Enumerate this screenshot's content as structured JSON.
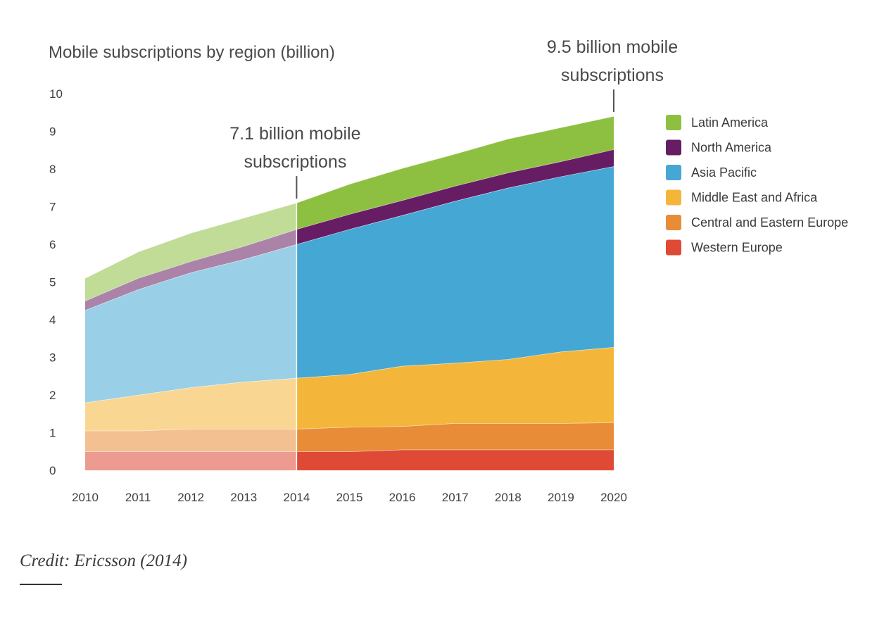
{
  "chart_data": {
    "type": "area",
    "stacked": true,
    "title": "Mobile subscriptions by region (billion)",
    "xlabel": "",
    "ylabel": "",
    "x": [
      2010,
      2011,
      2012,
      2013,
      2014,
      2015,
      2016,
      2017,
      2018,
      2019,
      2020
    ],
    "ylim": [
      0,
      10
    ],
    "yticks": [
      0,
      1,
      2,
      3,
      4,
      5,
      6,
      7,
      8,
      9,
      10
    ],
    "grid": false,
    "legend": "right",
    "highlight_from_x": 2014,
    "series": [
      {
        "name": "Western Europe",
        "color": "#de4a35",
        "values": [
          0.5,
          0.5,
          0.5,
          0.5,
          0.5,
          0.5,
          0.55,
          0.55,
          0.55,
          0.55,
          0.55
        ]
      },
      {
        "name": "Central and Eastern Europe",
        "color": "#e98c37",
        "values": [
          0.55,
          0.55,
          0.6,
          0.6,
          0.6,
          0.65,
          0.62,
          0.7,
          0.7,
          0.7,
          0.72
        ]
      },
      {
        "name": "Middle East and Africa",
        "color": "#f4b63a",
        "values": [
          0.75,
          0.95,
          1.1,
          1.25,
          1.35,
          1.4,
          1.6,
          1.6,
          1.7,
          1.9,
          2.0
        ]
      },
      {
        "name": "Asia Pacific",
        "color": "#45a7d4",
        "values": [
          2.45,
          2.8,
          3.05,
          3.25,
          3.55,
          3.85,
          4.0,
          4.3,
          4.55,
          4.65,
          4.8
        ]
      },
      {
        "name": "North America",
        "color": "#661d63",
        "values": [
          0.25,
          0.3,
          0.3,
          0.35,
          0.4,
          0.4,
          0.4,
          0.4,
          0.4,
          0.4,
          0.45
        ]
      },
      {
        "name": "Latin America",
        "color": "#8dc040",
        "values": [
          0.6,
          0.7,
          0.75,
          0.75,
          0.7,
          0.8,
          0.85,
          0.85,
          0.9,
          0.9,
          0.88
        ]
      }
    ],
    "annotations": [
      {
        "x": 2014,
        "lines": [
          "7.1 billion mobile",
          "subscriptions"
        ]
      },
      {
        "x": 2020,
        "lines": [
          "9.5 billion mobile",
          "subscriptions"
        ]
      }
    ]
  },
  "credit": "Credit: Ericsson (2014)"
}
